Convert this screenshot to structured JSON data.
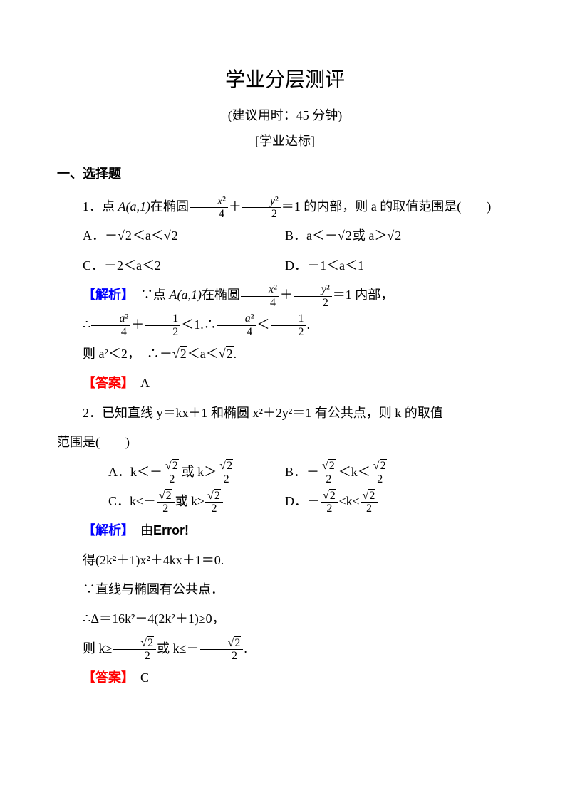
{
  "title": "学业分层测评",
  "subtitle": "(建议用时：45 分钟)",
  "section_label": "[学业达标]",
  "heading1": "一、选择题",
  "q1": {
    "stem_prefix": "1．点 ",
    "point": "A(a,1)",
    "stem_mid": "在椭圆",
    "stem_suffix": "＝1 的内部，则 a 的取值范围是(　　)",
    "optA_pre": "A．－",
    "optA_mid": "＜a＜",
    "optB_pre": "B．a＜－",
    "optB_mid": "或 a＞",
    "optC": "C．－2＜a＜2",
    "optD": "D．－1＜a＜1",
    "ana_label": "【解析】",
    "ana_pre": "　∵点 ",
    "ana_point": "A(a,1)",
    "ana_mid": "在椭圆",
    "ana_suf": "＝1 内部，",
    "step1_pre": "∴",
    "step1_mid": "＋",
    "step1_lt": "＜1.∴",
    "step1_lt2": "＜",
    "step1_end": ".",
    "step2_pre": "则 a²＜2，　∴－",
    "step2_mid": "＜a＜",
    "step2_end": ".",
    "answer_label": "【答案】",
    "answer": "　A"
  },
  "q2": {
    "stem": "2．已知直线 y＝kx＋1 和椭圆 x²＋2y²＝1 有公共点，则 k 的取值",
    "stem2": "范围是(　　)",
    "optA_pre": "A．k＜－",
    "optA_mid": "或 k＞",
    "optB_pre": "B．－",
    "optB_mid": "＜k＜",
    "optC_pre": "C．k≤－",
    "optC_mid": "或 k≥",
    "optD_pre": "D．－",
    "optD_mid": "≤k≤",
    "ana_label": "【解析】",
    "ana_text": "　由",
    "error": "Error!",
    "step1": "得(2k²＋1)x²＋4kx＋1＝0.",
    "step2": "∵直线与椭圆有公共点．",
    "step3": "∴Δ＝16k²－4(2k²＋1)≥0，",
    "step4_pre": "则 k≥",
    "step4_mid": "或 k≤－",
    "step4_end": ".",
    "answer_label": "【答案】",
    "answer": "　C"
  }
}
